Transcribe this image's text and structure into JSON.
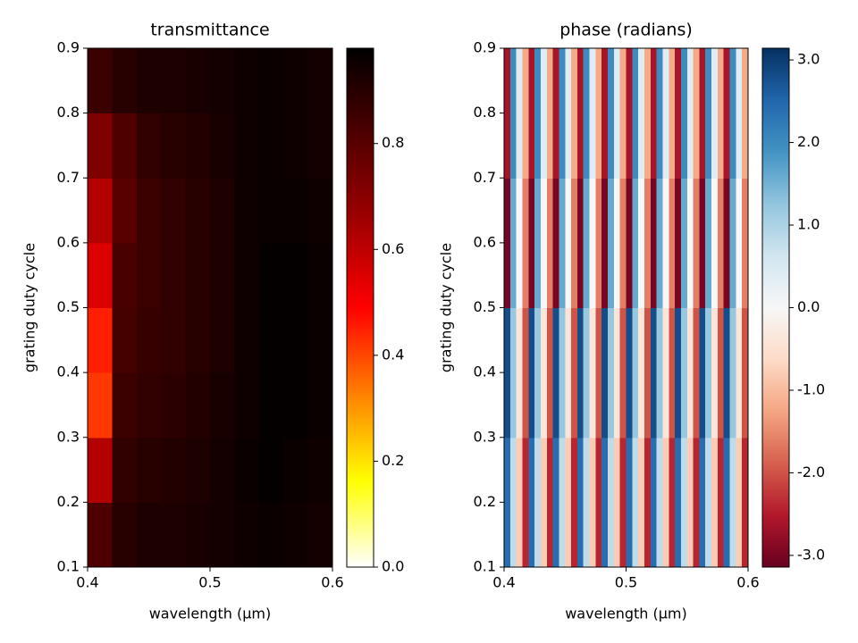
{
  "chart_data": [
    {
      "type": "heatmap",
      "title": "transmittance",
      "xlabel": "wavelength (µm)",
      "ylabel": "grating duty cycle",
      "x": [
        0.41,
        0.43,
        0.45,
        0.47,
        0.49,
        0.51,
        0.53,
        0.55,
        0.57,
        0.59
      ],
      "y": [
        0.15,
        0.25,
        0.35,
        0.45,
        0.55,
        0.65,
        0.75,
        0.85
      ],
      "values": [
        [
          0.82,
          0.9,
          0.92,
          0.92,
          0.93,
          0.94,
          0.95,
          0.96,
          0.95,
          0.94
        ],
        [
          0.62,
          0.88,
          0.9,
          0.91,
          0.92,
          0.94,
          0.96,
          0.97,
          0.96,
          0.95
        ],
        [
          0.42,
          0.86,
          0.88,
          0.89,
          0.91,
          0.93,
          0.95,
          0.97,
          0.97,
          0.96
        ],
        [
          0.45,
          0.84,
          0.87,
          0.88,
          0.9,
          0.92,
          0.95,
          0.97,
          0.97,
          0.96
        ],
        [
          0.55,
          0.83,
          0.86,
          0.88,
          0.9,
          0.92,
          0.95,
          0.97,
          0.97,
          0.96
        ],
        [
          0.62,
          0.8,
          0.86,
          0.88,
          0.9,
          0.92,
          0.95,
          0.96,
          0.96,
          0.95
        ],
        [
          0.72,
          0.82,
          0.88,
          0.9,
          0.91,
          0.93,
          0.95,
          0.96,
          0.95,
          0.94
        ],
        [
          0.86,
          0.9,
          0.92,
          0.92,
          0.93,
          0.94,
          0.95,
          0.96,
          0.95,
          0.94
        ]
      ],
      "xlim": [
        0.4,
        0.6
      ],
      "xticks": [
        0.4,
        0.5,
        0.6
      ],
      "ylim": [
        0.1,
        0.9
      ],
      "yticks": [
        0.1,
        0.2,
        0.3,
        0.4,
        0.5,
        0.6,
        0.7,
        0.8,
        0.9
      ],
      "clim": [
        0,
        0.98
      ],
      "cticks": [
        {
          "value": 0,
          "label": "0.0"
        },
        0.2,
        0.4,
        0.6,
        0.8
      ],
      "colormap": [
        "#ffffff",
        "#ffff00",
        "#ff8000",
        "#ff0000",
        "#a00000",
        "#500000",
        "#000000"
      ]
    },
    {
      "type": "heatmap",
      "title": "phase (radians)",
      "xlabel": "wavelength (µm)",
      "ylabel": "grating duty cycle",
      "x": [
        0.4025,
        0.4075,
        0.4125,
        0.4175,
        0.4225,
        0.4275,
        0.4325,
        0.4375,
        0.4425,
        0.4475,
        0.4525,
        0.4575,
        0.4625,
        0.4675,
        0.4725,
        0.4775,
        0.4825,
        0.4875,
        0.4925,
        0.4975,
        0.5025,
        0.5075,
        0.5125,
        0.5175,
        0.5225,
        0.5275,
        0.5325,
        0.5375,
        0.5425,
        0.5475,
        0.5525,
        0.5575,
        0.5625,
        0.5675,
        0.5725,
        0.5775,
        0.5825,
        0.5875,
        0.5925,
        0.5975
      ],
      "y": [
        0.2,
        0.4,
        0.6,
        0.8
      ],
      "values": [
        [
          2.4,
          0.8,
          -0.8,
          -2.4,
          2.4,
          0.8,
          -0.8,
          -2.4,
          2.4,
          0.8,
          -0.8,
          -2.4,
          2.4,
          0.8,
          -0.8,
          -2.4,
          2.4,
          0.8,
          -0.8,
          -2.4,
          2.4,
          0.8,
          -0.8,
          -2.4,
          2.4,
          0.8,
          -0.8,
          -2.4,
          2.4,
          0.8,
          -0.8,
          -2.4,
          2.4,
          0.8,
          -0.8,
          -2.4,
          2.4,
          0.8,
          -0.8,
          -2.4
        ],
        [
          2.8,
          1.2,
          -0.4,
          -2.0,
          2.8,
          1.2,
          -0.4,
          -2.0,
          2.8,
          1.2,
          -0.4,
          -2.0,
          2.8,
          1.2,
          -0.4,
          -2.0,
          2.8,
          1.2,
          -0.4,
          -2.0,
          2.8,
          1.2,
          -0.4,
          -2.0,
          2.8,
          1.2,
          -0.4,
          -2.0,
          2.8,
          1.2,
          -0.4,
          -2.0,
          2.8,
          1.2,
          -0.4,
          -2.0,
          2.8,
          1.2,
          -0.4,
          -2.0
        ],
        [
          -3.0,
          1.6,
          0.0,
          -1.6,
          -3.0,
          1.6,
          0.0,
          -1.6,
          -3.0,
          1.6,
          0.0,
          -1.6,
          -3.0,
          1.6,
          0.0,
          -1.6,
          -3.0,
          1.6,
          0.0,
          -1.6,
          -3.0,
          1.6,
          0.0,
          -1.6,
          -3.0,
          1.6,
          0.0,
          -1.6,
          -3.0,
          1.6,
          0.0,
          -1.6,
          -3.0,
          1.6,
          0.0,
          -1.6,
          -3.0,
          1.6,
          0.0,
          -1.6
        ],
        [
          -2.6,
          2.0,
          0.4,
          -1.2,
          -2.6,
          2.0,
          0.4,
          -1.2,
          -2.6,
          2.0,
          0.4,
          -1.2,
          -2.6,
          2.0,
          0.4,
          -1.2,
          -2.6,
          2.0,
          0.4,
          -1.2,
          -2.6,
          2.0,
          0.4,
          -1.2,
          -2.6,
          2.0,
          0.4,
          -1.2,
          -2.6,
          2.0,
          0.4,
          -1.2,
          -2.6,
          2.0,
          0.4,
          -1.2,
          -2.6,
          2.0,
          0.4,
          -1.2
        ]
      ],
      "xlim": [
        0.4,
        0.6
      ],
      "xticks": [
        0.4,
        0.5,
        0.6
      ],
      "ylim": [
        0.1,
        0.9
      ],
      "yticks": [
        0.1,
        0.2,
        0.3,
        0.4,
        0.5,
        0.6,
        0.7,
        0.8,
        0.9
      ],
      "clim": [
        -3.14159,
        3.14159
      ],
      "cticks": [
        {
          "value": -3,
          "label": "-3.0"
        },
        {
          "value": -2,
          "label": "-2.0"
        },
        {
          "value": -1,
          "label": "-1.0"
        },
        {
          "value": 0,
          "label": "0.0"
        },
        {
          "value": 1,
          "label": "1.0"
        },
        {
          "value": 2,
          "label": "2.0"
        },
        {
          "value": 3,
          "label": "3.0"
        }
      ],
      "colormap": [
        "#67001f",
        "#b2182b",
        "#d6604d",
        "#f4a582",
        "#fddbc7",
        "#f7f7f7",
        "#d1e5f0",
        "#92c5de",
        "#4393c3",
        "#2166ac",
        "#053061"
      ]
    }
  ]
}
